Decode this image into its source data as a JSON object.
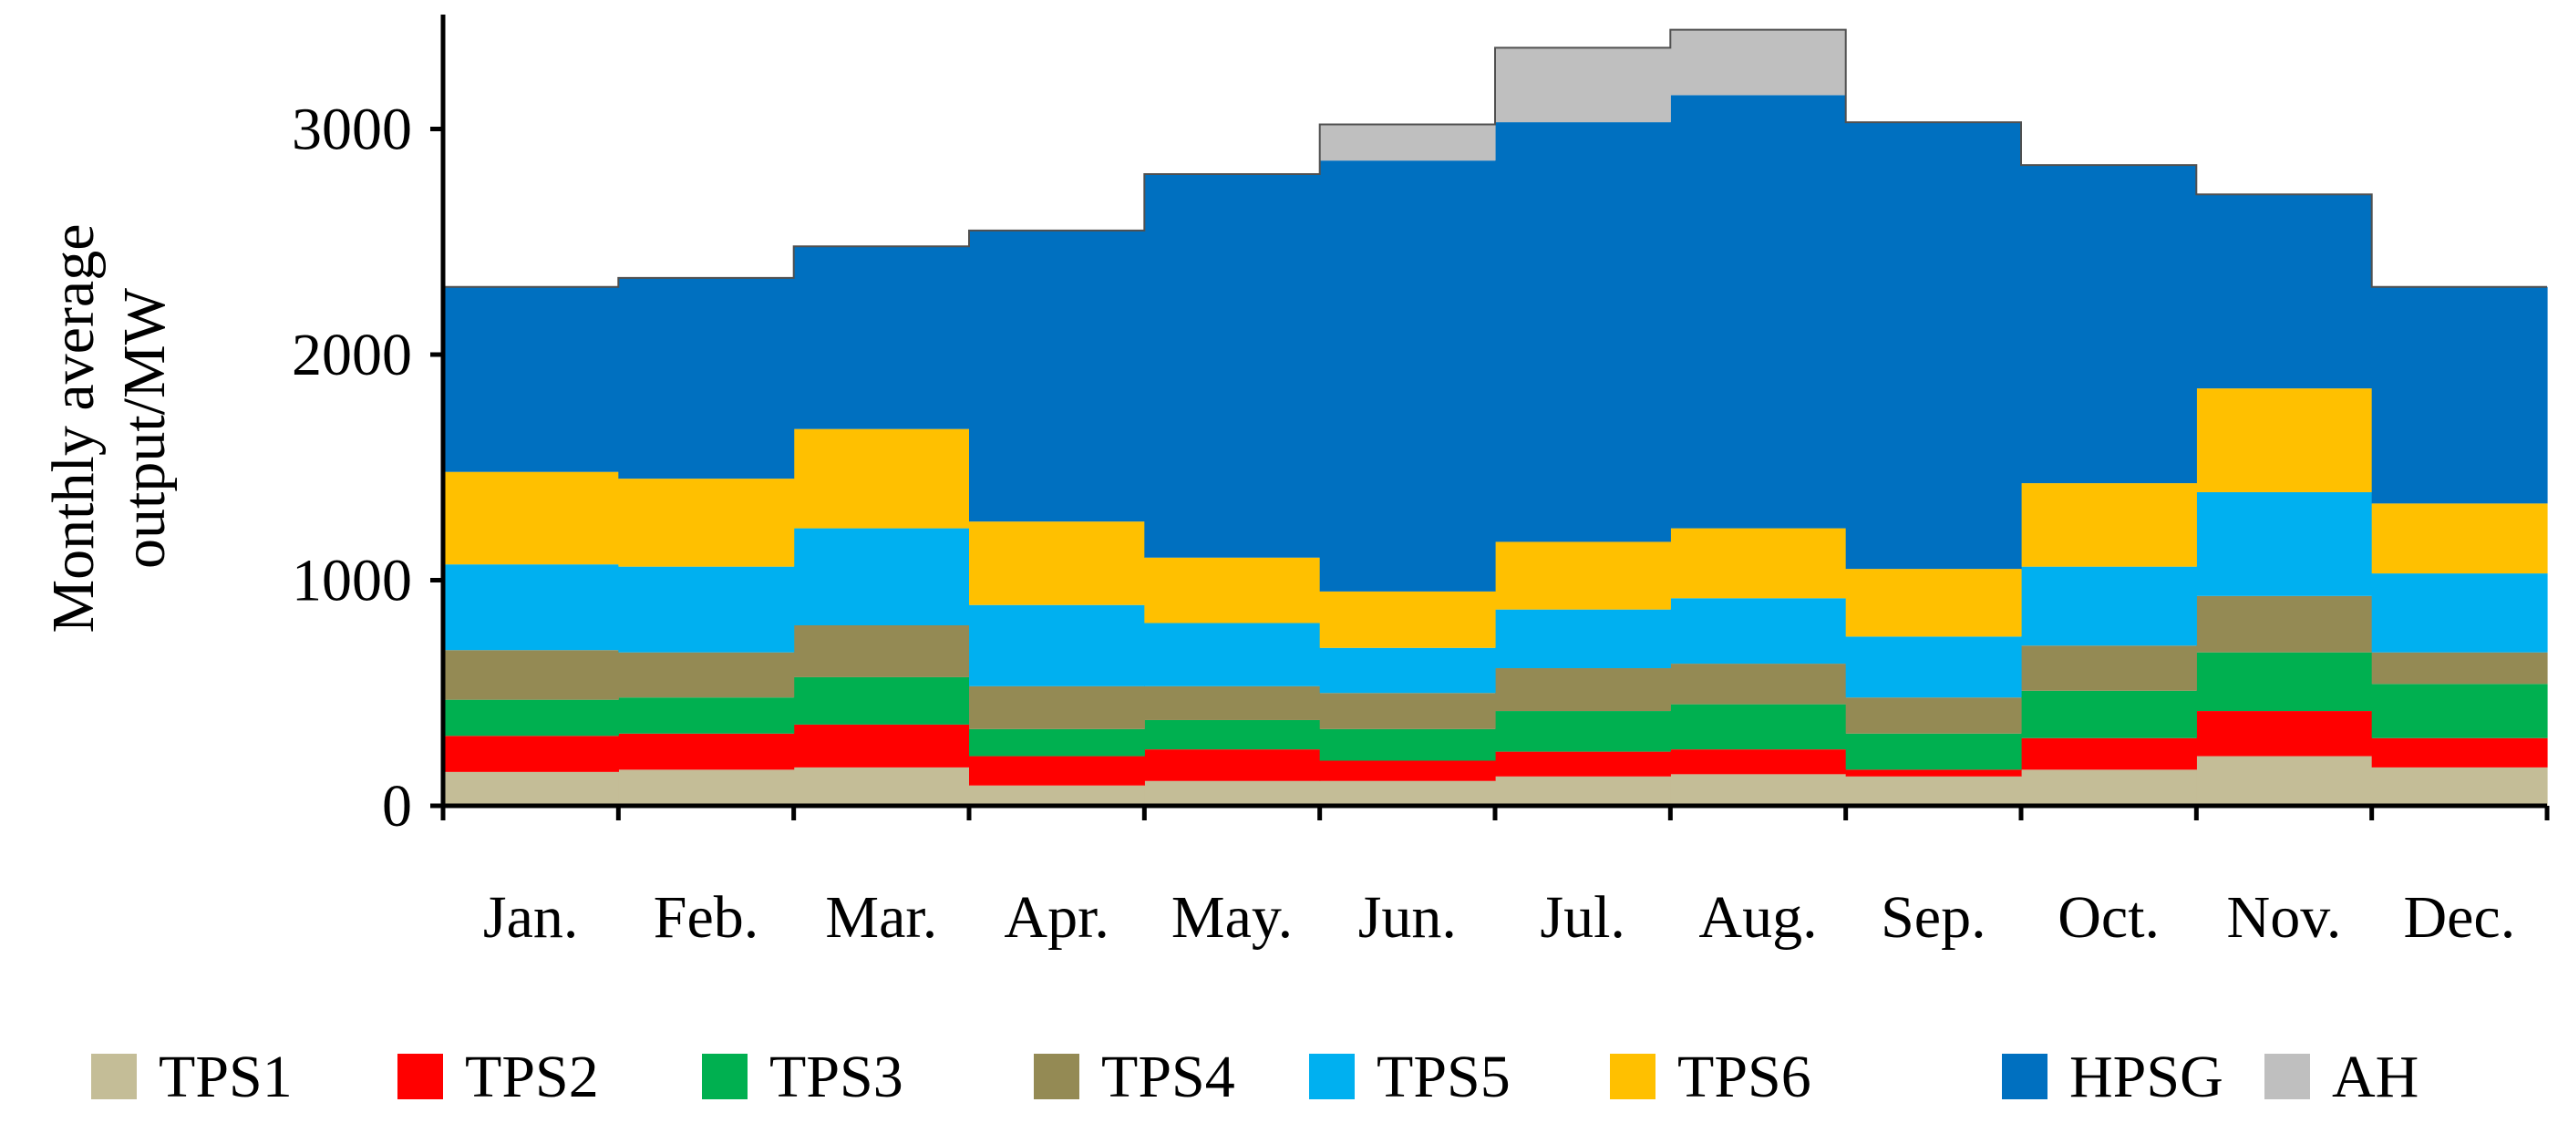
{
  "chart_data": {
    "type": "stacked-step-area",
    "title": "",
    "ylabel": "Monthly average output/MW",
    "xlabel": "",
    "ylim": [
      0,
      3500
    ],
    "yticks": [
      0,
      1000,
      2000,
      3000
    ],
    "categories": [
      "Jan.",
      "Feb.",
      "Mar.",
      "Apr.",
      "May.",
      "Jun.",
      "Jul.",
      "Aug.",
      "Sep.",
      "Oct.",
      "Nov.",
      "Dec."
    ],
    "legend_position": "bottom",
    "series": [
      {
        "name": "TPS1",
        "color": "#c4bd97",
        "values": [
          150,
          160,
          170,
          90,
          110,
          110,
          130,
          140,
          130,
          160,
          220,
          170
        ]
      },
      {
        "name": "TPS2",
        "color": "#ff0000",
        "values": [
          160,
          160,
          190,
          130,
          140,
          90,
          110,
          110,
          30,
          140,
          200,
          130
        ]
      },
      {
        "name": "TPS3",
        "color": "#00b050",
        "values": [
          160,
          160,
          210,
          120,
          130,
          140,
          180,
          200,
          160,
          210,
          260,
          240
        ]
      },
      {
        "name": "TPS4",
        "color": "#948a54",
        "values": [
          220,
          200,
          230,
          190,
          150,
          160,
          190,
          180,
          160,
          200,
          250,
          140
        ]
      },
      {
        "name": "TPS5",
        "color": "#00b0f0",
        "values": [
          380,
          380,
          430,
          360,
          280,
          200,
          260,
          290,
          270,
          350,
          460,
          350
        ]
      },
      {
        "name": "TPS6",
        "color": "#ffc000",
        "values": [
          410,
          390,
          440,
          370,
          290,
          250,
          300,
          310,
          300,
          370,
          460,
          310
        ]
      },
      {
        "name": "HPSG",
        "color": "#0070c0",
        "values": [
          820,
          890,
          810,
          1290,
          1700,
          1910,
          1860,
          1920,
          1980,
          1410,
          860,
          960
        ]
      },
      {
        "name": "AH",
        "color": "#bfbfbf",
        "values": [
          0,
          0,
          0,
          0,
          0,
          160,
          330,
          290,
          0,
          0,
          0,
          0
        ]
      }
    ]
  }
}
